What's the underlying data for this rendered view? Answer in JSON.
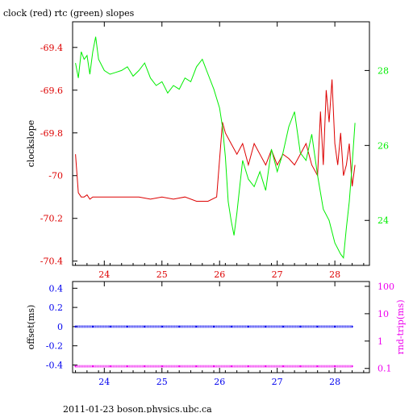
{
  "colors": {
    "frame": "#000000",
    "clock": "#dd0000",
    "rtc": "#00ee00",
    "offset": "#0000ee",
    "rndtrip": "#ee00ee",
    "background": "#ffffff"
  },
  "chart_data": [
    {
      "type": "line",
      "title": "clock (red) rtc (green) slopes",
      "xlabel": "",
      "xlim": [
        23.45,
        28.6
      ],
      "x_ticks": [
        24,
        25,
        26,
        27,
        28
      ],
      "x_tick_labels": [
        "24",
        "25",
        "26",
        "27",
        "28"
      ],
      "ylabel": "clockslope",
      "ylim": [
        -70.42,
        -69.28
      ],
      "y_ticks": [
        -69.4,
        -69.6,
        -69.8,
        -70,
        -70.2,
        -70.4
      ],
      "y_tick_labels": [
        "-69.4",
        "-69.6",
        "-69.8",
        "-70",
        "-70.2",
        "-70.4"
      ],
      "y2lim": [
        22.8,
        29.3
      ],
      "y2_ticks": [
        24,
        26,
        28
      ],
      "y2_tick_labels": [
        "24",
        "26",
        "28"
      ],
      "series": [
        {
          "name": "clock",
          "axis": "left",
          "x": [
            23.5,
            23.55,
            23.6,
            23.65,
            23.7,
            23.75,
            23.8,
            23.9,
            24.0,
            24.2,
            24.4,
            24.6,
            24.8,
            25.0,
            25.2,
            25.4,
            25.6,
            25.8,
            25.95,
            26.05,
            26.1,
            26.2,
            26.3,
            26.4,
            26.5,
            26.6,
            26.7,
            26.8,
            26.9,
            27.0,
            27.1,
            27.2,
            27.3,
            27.4,
            27.5,
            27.6,
            27.7,
            27.75,
            27.8,
            27.85,
            27.9,
            27.95,
            28.0,
            28.05,
            28.1,
            28.15,
            28.2,
            28.25,
            28.3,
            28.35
          ],
          "values": [
            -69.9,
            -70.08,
            -70.1,
            -70.1,
            -70.09,
            -70.11,
            -70.1,
            -70.1,
            -70.1,
            -70.1,
            -70.1,
            -70.1,
            -70.11,
            -70.1,
            -70.11,
            -70.1,
            -70.12,
            -70.12,
            -70.1,
            -69.75,
            -69.8,
            -69.85,
            -69.9,
            -69.85,
            -69.95,
            -69.85,
            -69.9,
            -69.95,
            -69.88,
            -69.95,
            -69.9,
            -69.92,
            -69.95,
            -69.9,
            -69.85,
            -69.95,
            -70.0,
            -69.7,
            -69.95,
            -69.6,
            -69.75,
            -69.55,
            -69.85,
            -69.95,
            -69.8,
            -70.0,
            -69.95,
            -69.85,
            -70.05,
            -69.95
          ]
        },
        {
          "name": "rtc",
          "axis": "right",
          "x": [
            23.5,
            23.55,
            23.6,
            23.65,
            23.7,
            23.75,
            23.8,
            23.85,
            23.9,
            24.0,
            24.1,
            24.2,
            24.3,
            24.4,
            24.5,
            24.6,
            24.7,
            24.8,
            24.9,
            25.0,
            25.1,
            25.2,
            25.3,
            25.4,
            25.5,
            25.6,
            25.7,
            25.8,
            25.9,
            26.0,
            26.05,
            26.1,
            26.15,
            26.2,
            26.25,
            26.3,
            26.35,
            26.4,
            26.5,
            26.6,
            26.7,
            26.8,
            26.9,
            27.0,
            27.1,
            27.2,
            27.3,
            27.4,
            27.5,
            27.6,
            27.7,
            27.8,
            27.9,
            28.0,
            28.1,
            28.15,
            28.2,
            28.25,
            28.3,
            28.35
          ],
          "values": [
            28.2,
            27.8,
            28.5,
            28.3,
            28.4,
            27.9,
            28.5,
            28.9,
            28.3,
            28.0,
            27.9,
            27.95,
            28.0,
            28.1,
            27.85,
            28.0,
            28.2,
            27.8,
            27.6,
            27.7,
            27.4,
            27.6,
            27.5,
            27.8,
            27.7,
            28.1,
            28.3,
            27.9,
            27.5,
            27.0,
            26.5,
            25.7,
            24.5,
            24.0,
            23.6,
            24.2,
            24.9,
            25.6,
            25.1,
            24.9,
            25.3,
            24.8,
            25.9,
            25.3,
            25.8,
            26.5,
            26.9,
            25.8,
            25.6,
            26.3,
            25.2,
            24.3,
            24.0,
            23.4,
            23.1,
            23.0,
            23.8,
            24.5,
            25.5,
            26.6
          ]
        }
      ]
    },
    {
      "type": "scatter",
      "title": "",
      "xlabel": "",
      "xlim": [
        23.45,
        28.6
      ],
      "x_ticks": [
        24,
        25,
        26,
        27,
        28
      ],
      "x_tick_labels": [
        "24",
        "25",
        "26",
        "27",
        "28"
      ],
      "ylabel": "offset(ms)",
      "ylim": [
        -0.48,
        0.47
      ],
      "y_ticks": [
        0.4,
        0.2,
        0,
        -0.2,
        -0.4
      ],
      "y_tick_labels": [
        "0.4",
        "0.2",
        "0",
        "-0.2",
        "-0.4"
      ],
      "y2label": "rnd-trip(ms)",
      "y2_scale": "log",
      "y2lim": [
        0.07,
        150
      ],
      "y2_ticks": [
        100,
        10,
        1,
        0.1
      ],
      "y2_tick_labels": [
        "100",
        "10",
        "1",
        "0.1"
      ],
      "series": [
        {
          "name": "offset",
          "axis": "left",
          "x": [
            23.5,
            23.8,
            24.1,
            24.4,
            24.7,
            25.0,
            25.3,
            25.6,
            25.9,
            26.2,
            26.5,
            26.8,
            27.1,
            27.4,
            27.7,
            28.0,
            28.3
          ],
          "values": [
            0.0,
            0.0,
            0.0,
            0.0,
            0.0,
            0.0,
            0.0,
            0.0,
            0.0,
            0.0,
            0.0,
            0.0,
            0.0,
            0.0,
            0.0,
            0.0,
            0.0
          ]
        },
        {
          "name": "rnd-trip",
          "axis": "right",
          "x": [
            23.5,
            23.8,
            24.1,
            24.4,
            24.7,
            25.0,
            25.3,
            25.6,
            25.9,
            26.2,
            26.5,
            26.8,
            27.1,
            27.4,
            27.7,
            28.0,
            28.3
          ],
          "values": [
            0.12,
            0.12,
            0.12,
            0.12,
            0.12,
            0.12,
            0.12,
            0.12,
            0.12,
            0.12,
            0.12,
            0.12,
            0.12,
            0.12,
            0.12,
            0.12,
            0.12
          ]
        }
      ]
    }
  ],
  "footer": {
    "text": "2011-01-23  boson.physics.ubc.ca"
  }
}
